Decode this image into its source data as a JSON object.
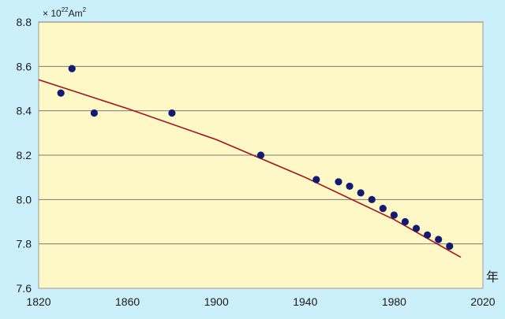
{
  "chart_data": {
    "type": "scatter",
    "unit_label": {
      "prefix": "× 10",
      "exponent": "22",
      "base": "Am",
      "base_exponent": "2"
    },
    "xlabel": "年",
    "ylabel": "",
    "xlim": [
      1820,
      2020
    ],
    "ylim": [
      7.6,
      8.8
    ],
    "x_ticks": [
      "1820",
      "1860",
      "1900",
      "1940",
      "1980",
      "2020"
    ],
    "y_ticks": [
      "7.6",
      "7.8",
      "8.0",
      "8.2",
      "8.4",
      "8.6",
      "8.8"
    ],
    "grid": true,
    "legend": "none",
    "colors": {
      "background": "#ccf0fb",
      "plot_area": "#fdf8c6",
      "grid": "#7a7a7a",
      "points": "#141a72",
      "trend": "#a5111a"
    },
    "points": [
      {
        "x": 1830,
        "y": 8.48
      },
      {
        "x": 1835,
        "y": 8.59
      },
      {
        "x": 1845,
        "y": 8.39
      },
      {
        "x": 1880,
        "y": 8.39
      },
      {
        "x": 1920,
        "y": 8.2
      },
      {
        "x": 1945,
        "y": 8.09
      },
      {
        "x": 1955,
        "y": 8.08
      },
      {
        "x": 1960,
        "y": 8.06
      },
      {
        "x": 1965,
        "y": 8.03
      },
      {
        "x": 1970,
        "y": 8.0
      },
      {
        "x": 1975,
        "y": 7.96
      },
      {
        "x": 1980,
        "y": 7.93
      },
      {
        "x": 1985,
        "y": 7.9
      },
      {
        "x": 1990,
        "y": 7.87
      },
      {
        "x": 1995,
        "y": 7.84
      },
      {
        "x": 2000,
        "y": 7.82
      },
      {
        "x": 2005,
        "y": 7.79
      }
    ],
    "trend_line": {
      "x": [
        1820,
        1860,
        1900,
        1940,
        1980,
        2010
      ],
      "y": [
        8.54,
        8.41,
        8.27,
        8.1,
        7.91,
        7.74
      ]
    }
  }
}
